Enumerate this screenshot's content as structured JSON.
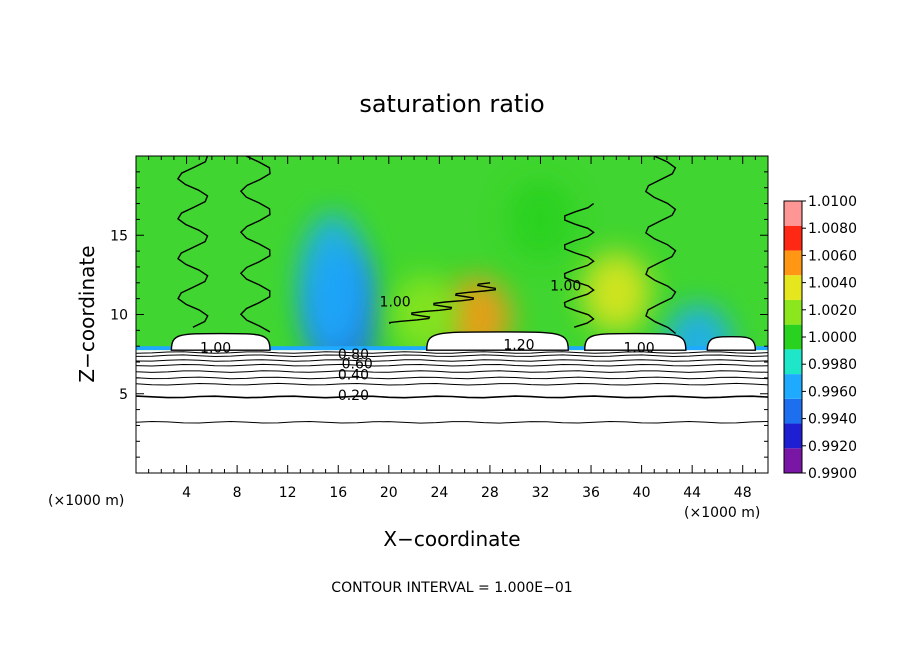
{
  "chart_data": {
    "type": "heatmap",
    "title": "saturation ratio",
    "xlabel": "X−coordinate",
    "ylabel": "Z−coordinate",
    "x_unit_left": "(×1000 m)",
    "x_unit_right": "(×1000 m)",
    "footer": "CONTOUR INTERVAL = 1.000E−01",
    "x_range": [
      0,
      50
    ],
    "y_range": [
      0,
      20
    ],
    "x_ticks": [
      4,
      8,
      12,
      16,
      20,
      24,
      28,
      32,
      36,
      40,
      44,
      48
    ],
    "y_ticks": [
      5,
      10,
      15
    ],
    "colorbar": {
      "levels": [
        0.99,
        0.992,
        0.994,
        0.996,
        0.998,
        1.0,
        1.002,
        1.004,
        1.006,
        1.008,
        1.01
      ],
      "labels": [
        "0.9900",
        "0.9920",
        "0.9940",
        "0.9960",
        "0.9980",
        "1.0000",
        "1.0020",
        "1.0040",
        "1.0060",
        "1.0080",
        "1.0100"
      ],
      "colors": [
        "#7a16a6",
        "#1e1ed2",
        "#1e6ef0",
        "#1eaaff",
        "#1ee6c8",
        "#28d21e",
        "#8ce61e",
        "#e6e61e",
        "#ff9614",
        "#ff2814",
        "#ff9696"
      ]
    },
    "contour_labels": [
      {
        "text": "1.00",
        "x": 6.3,
        "y": 7.6
      },
      {
        "text": "1.20",
        "x": 30.3,
        "y": 7.8
      },
      {
        "text": "1.00",
        "x": 39.8,
        "y": 7.6
      },
      {
        "text": "1.00",
        "x": 20.5,
        "y": 10.5
      },
      {
        "text": "1.00",
        "x": 34.0,
        "y": 11.5
      },
      {
        "text": "0.80",
        "x": 17.2,
        "y": 7.2
      },
      {
        "text": "0.60",
        "x": 17.5,
        "y": 6.6
      },
      {
        "text": "0.40",
        "x": 17.2,
        "y": 5.9
      },
      {
        "text": "0.20",
        "x": 17.2,
        "y": 4.6
      }
    ],
    "stable_contours_z": [
      3.2,
      4.8,
      5.6,
      6.0,
      6.4,
      6.8,
      7.1,
      7.4,
      7.6
    ],
    "cloud_tops": [
      {
        "x0": 2.8,
        "x1": 10.6,
        "z": 8.8
      },
      {
        "x0": 23.0,
        "x1": 34.2,
        "z": 8.9
      },
      {
        "x0": 35.5,
        "x1": 43.5,
        "z": 8.8
      },
      {
        "x0": 45.2,
        "x1": 49.0,
        "z": 8.6
      }
    ],
    "field_features": [
      {
        "x": 16.3,
        "z": 9.8,
        "value": 0.994
      },
      {
        "x": 15.6,
        "z": 12.0,
        "value": 0.997
      },
      {
        "x": 27.0,
        "z": 9.8,
        "value": 1.006
      },
      {
        "x": 38.0,
        "z": 11.4,
        "value": 1.005
      },
      {
        "x": 22.8,
        "z": 10.0,
        "value": 1.003
      },
      {
        "x": 32.0,
        "z": 16.0,
        "value": 1.0015
      },
      {
        "x": 44.5,
        "z": 8.1,
        "value": 0.996
      }
    ]
  }
}
